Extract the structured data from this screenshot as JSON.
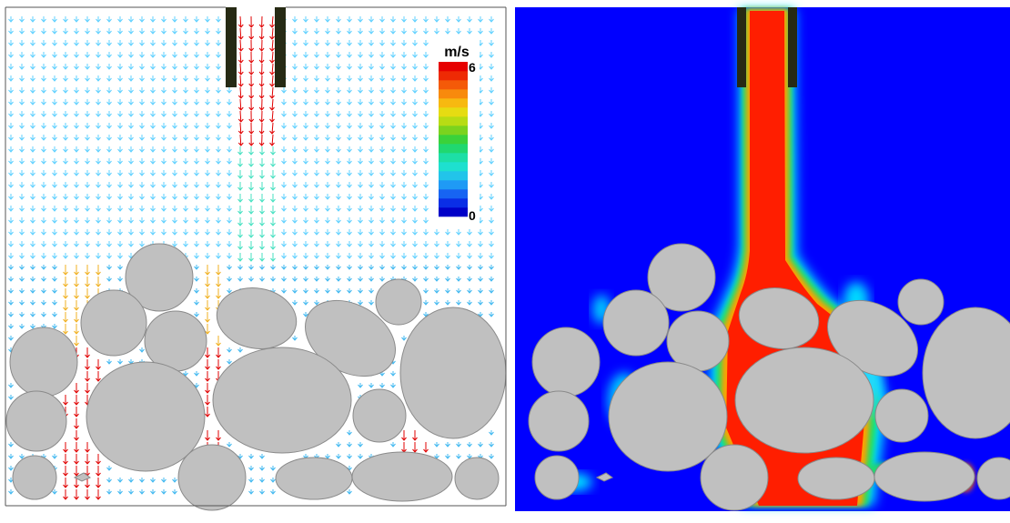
{
  "colorbar": {
    "unit": "m/s",
    "max_label": "6",
    "min_label": "0",
    "colors": [
      "#0000c8",
      "#0a2ee6",
      "#1764f2",
      "#1f9af5",
      "#22c4ea",
      "#1ee0cf",
      "#1ddfa6",
      "#20d870",
      "#3ad23a",
      "#7bd31e",
      "#b8dc14",
      "#e6dc12",
      "#f7b910",
      "#f88a0c",
      "#f45a08",
      "#ee2a04",
      "#e60000"
    ]
  },
  "left_panel": {
    "name": "velocity-vector-field",
    "background": "#ffffff"
  },
  "right_panel": {
    "name": "velocity-magnitude-contour",
    "background": "#0000ff"
  },
  "colors": {
    "rock": "#c0c0c0",
    "rock_edge": "#8a8a8a",
    "nozzle": "#262a14",
    "jet_core": "#ff1e00",
    "jet_mid": "#ffa000",
    "jet_edge": "#00e8ff",
    "arrow_low": "#5fd0ff",
    "arrow_high": "#e00000"
  }
}
